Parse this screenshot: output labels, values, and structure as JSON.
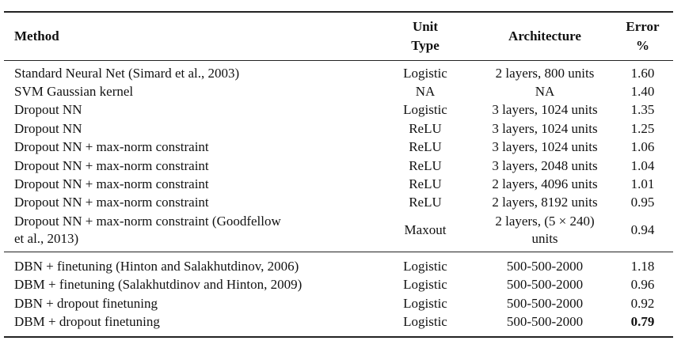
{
  "headers": {
    "method": "Method",
    "unit_type": [
      "Unit",
      "Type"
    ],
    "architecture": "Architecture",
    "error": [
      "Error",
      "%"
    ]
  },
  "group1": [
    {
      "method": "Standard Neural Net (Simard et al., 2003)",
      "unit": "Logistic",
      "arch": "2 layers, 800 units",
      "error": "1.60"
    },
    {
      "method": "SVM Gaussian kernel",
      "unit": "NA",
      "arch": "NA",
      "error": "1.40"
    },
    {
      "method": "Dropout NN",
      "unit": "Logistic",
      "arch": "3 layers, 1024 units",
      "error": "1.35"
    },
    {
      "method": "Dropout NN",
      "unit": "ReLU",
      "arch": "3 layers, 1024 units",
      "error": "1.25"
    },
    {
      "method": "Dropout NN + max-norm constraint",
      "unit": "ReLU",
      "arch": "3 layers, 1024 units",
      "error": "1.06"
    },
    {
      "method": "Dropout NN + max-norm constraint",
      "unit": "ReLU",
      "arch": "3 layers, 2048 units",
      "error": "1.04"
    },
    {
      "method": "Dropout NN + max-norm constraint",
      "unit": "ReLU",
      "arch": "2 layers, 4096 units",
      "error": "1.01"
    },
    {
      "method": "Dropout NN + max-norm constraint",
      "unit": "ReLU",
      "arch": "2 layers, 8192 units",
      "error": "0.95"
    },
    {
      "method": [
        "Dropout NN + max-norm constraint (Goodfellow",
        "et al., 2013)"
      ],
      "unit": "Maxout",
      "arch": [
        "2 layers, (5 × 240)",
        "units"
      ],
      "error": "0.94"
    }
  ],
  "group2": [
    {
      "method": "DBN + finetuning (Hinton and Salakhutdinov, 2006)",
      "unit": "Logistic",
      "arch": "500-500-2000",
      "error": "1.18"
    },
    {
      "method": "DBM + finetuning (Salakhutdinov and Hinton, 2009)",
      "unit": "Logistic",
      "arch": "500-500-2000",
      "error": "0.96"
    },
    {
      "method": "DBN + dropout finetuning",
      "unit": "Logistic",
      "arch": "500-500-2000",
      "error": "0.92"
    },
    {
      "method": "DBM + dropout finetuning",
      "unit": "Logistic",
      "arch": "500-500-2000",
      "error": "0.79",
      "best": true
    }
  ]
}
